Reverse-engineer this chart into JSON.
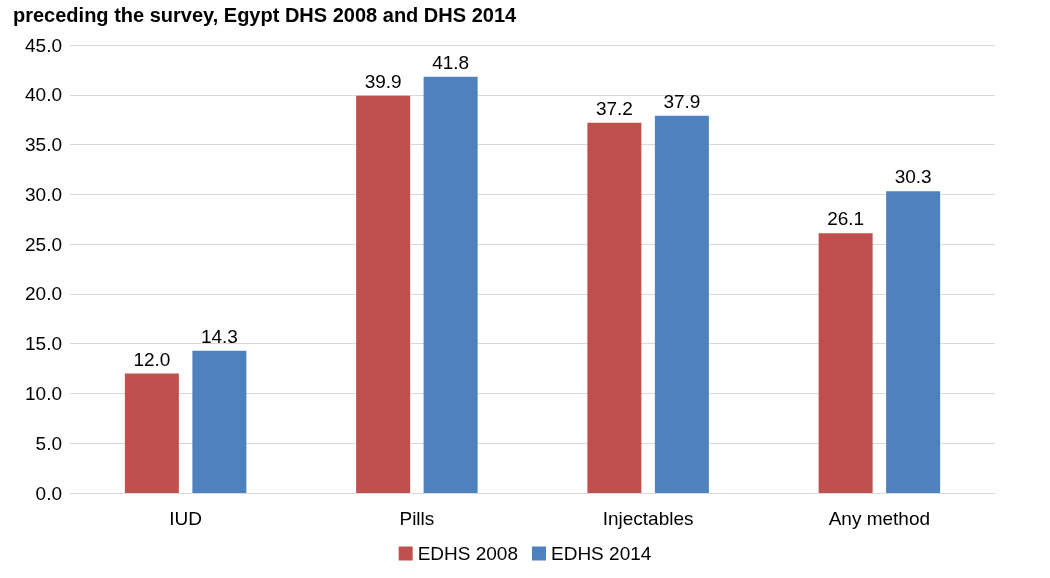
{
  "chart_data": {
    "type": "bar",
    "title": "preceding the survey, Egypt DHS 2008 and DHS 2014",
    "categories": [
      "IUD",
      "Pills",
      "Injectables",
      "Any method"
    ],
    "series": [
      {
        "name": "EDHS 2008",
        "color": "#c0504d",
        "values": [
          12.0,
          39.9,
          37.2,
          26.1
        ],
        "value_labels": [
          "12.0",
          "39.9",
          "37.2",
          "26.1"
        ]
      },
      {
        "name": "EDHS 2014",
        "color": "#4f81bd",
        "values": [
          14.3,
          41.8,
          37.9,
          30.3
        ],
        "value_labels": [
          "14.3",
          "41.8",
          "37.9",
          "30.3"
        ]
      }
    ],
    "ylim": [
      0,
      45
    ],
    "yticks": [
      {
        "value": 0,
        "label": "0.0"
      },
      {
        "value": 5,
        "label": "5.0"
      },
      {
        "value": 10,
        "label": "10.0"
      },
      {
        "value": 15,
        "label": "15.0"
      },
      {
        "value": 20,
        "label": "20.0"
      },
      {
        "value": 25,
        "label": "25.0"
      },
      {
        "value": 30,
        "label": "30.0"
      },
      {
        "value": 35,
        "label": "35.0"
      },
      {
        "value": 40,
        "label": "40.0"
      },
      {
        "value": 45,
        "label": "45.0"
      }
    ],
    "grid": "y",
    "legend": "bottom"
  }
}
